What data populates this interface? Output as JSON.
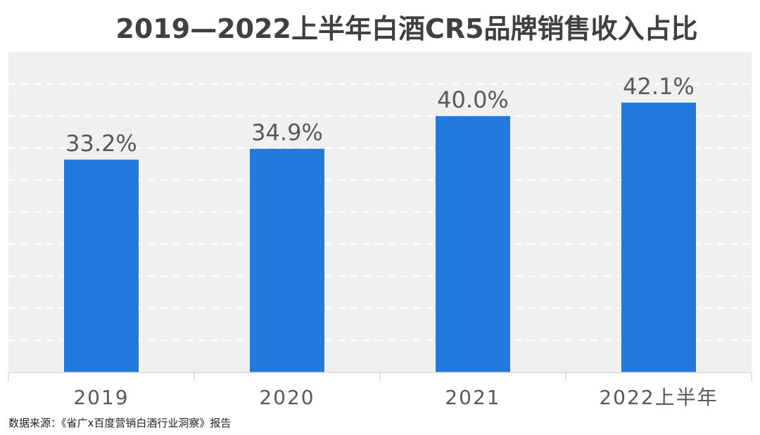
{
  "chart_data": {
    "type": "bar",
    "title": "2019—2022上半年白酒CR5品牌销售收入占比",
    "categories": [
      "2019",
      "2020",
      "2021",
      "2022上半年"
    ],
    "values": [
      33.2,
      34.9,
      40.0,
      42.1
    ],
    "data_labels": [
      "33.2%",
      "34.9%",
      "40.0%",
      "42.1%"
    ],
    "unit": "%",
    "xlabel": "",
    "ylabel": "",
    "ylim": [
      0,
      50
    ],
    "grid": true,
    "legend": "none",
    "colors": {
      "bar": "#2279DD",
      "plot_background": "#F0F0F0",
      "gridline": "#FFFFFF",
      "text": "#595959"
    }
  },
  "source": "数据来源：《省广x百度营销白酒行业洞察》报告"
}
